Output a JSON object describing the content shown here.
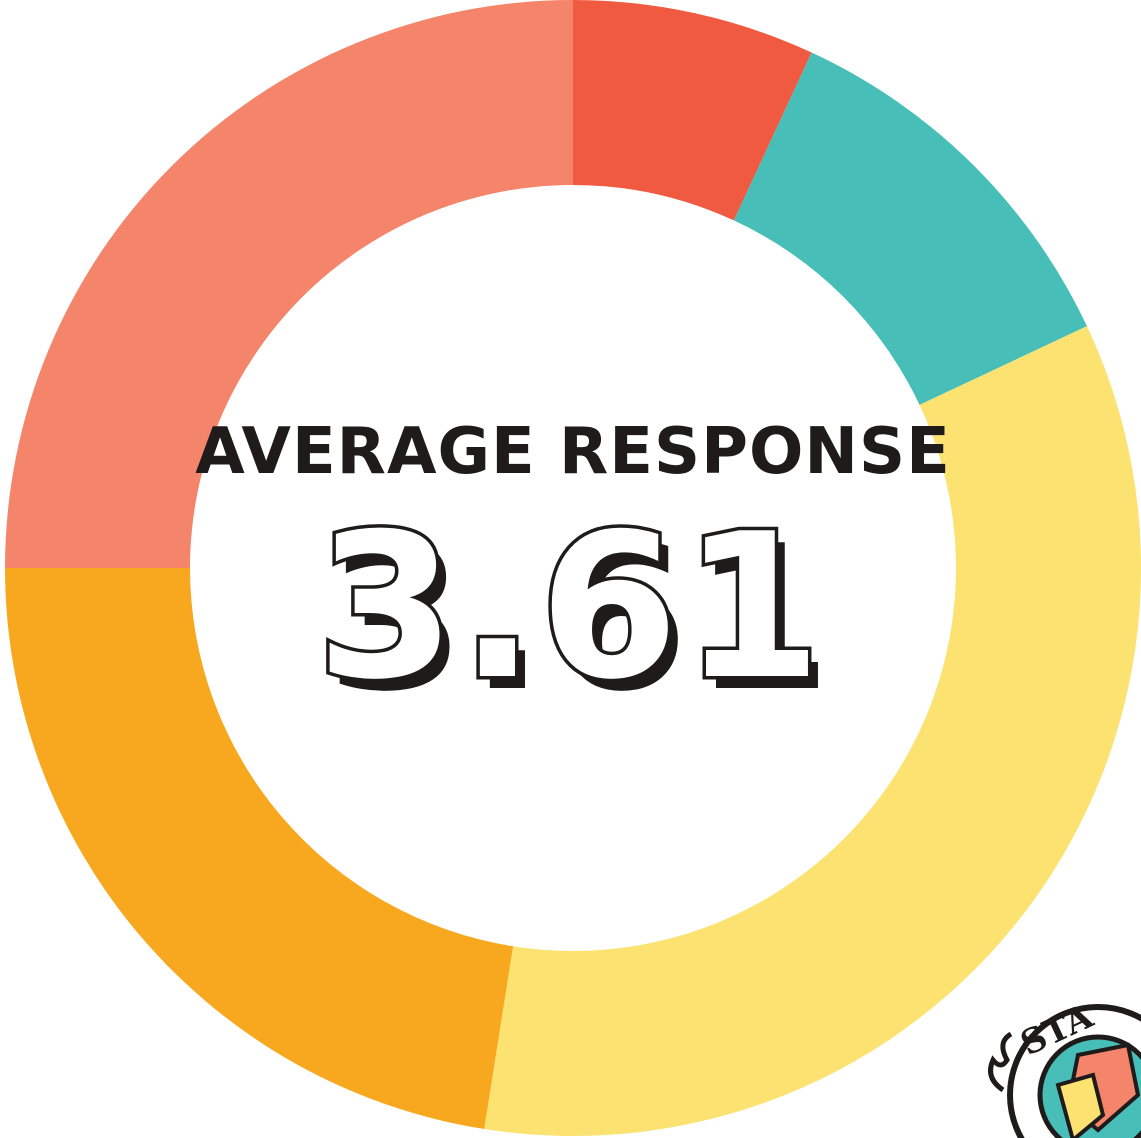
{
  "center": {
    "title": "AVERAGE RESPONSE",
    "value": "3.61"
  },
  "chart_data": {
    "type": "pie",
    "variant": "donut",
    "title": "",
    "start_angle_deg": 0,
    "direction": "clockwise",
    "slices": [
      {
        "value": 0.069,
        "color": "#EF5A41"
      },
      {
        "value": 0.111,
        "color": "#47BEB8"
      },
      {
        "value": 0.345,
        "color": "#FCE270"
      },
      {
        "value": 0.225,
        "color": "#F7A81E"
      },
      {
        "value": 0.25,
        "color": "#F4846A"
      }
    ]
  },
  "logo": {
    "text": "STA",
    "colors": [
      "#1f1b1b",
      "#47BEB8",
      "#F4846A",
      "#FCE270"
    ]
  }
}
